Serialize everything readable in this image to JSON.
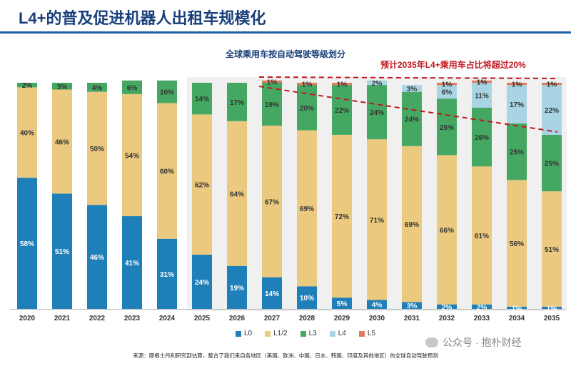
{
  "title": "L4+的普及促进机器人出租车规模化",
  "chart_data": {
    "type": "bar",
    "stacked": true,
    "title": "全球乘用车按自动驾驶等级划分",
    "categories": [
      "2020",
      "2021",
      "2022",
      "2023",
      "2024",
      "2025",
      "2026",
      "2027",
      "2028",
      "2029",
      "2030",
      "2031",
      "2032",
      "2033",
      "2034",
      "2035"
    ],
    "series": [
      {
        "name": "L0",
        "color": "#1f7fb8",
        "values": [
          58,
          51,
          46,
          41,
          31,
          24,
          19,
          14,
          10,
          5,
          4,
          3,
          2,
          2,
          1,
          1
        ],
        "labels": [
          "58%",
          "51%",
          "46%",
          "41%",
          "31%",
          "24%",
          "19%",
          "14%",
          "10%",
          "5%",
          "4%",
          "3%",
          "2%",
          "2%",
          "1%",
          "1%"
        ]
      },
      {
        "name": "L1/2",
        "color": "#ebc97f",
        "values": [
          40,
          46,
          50,
          54,
          60,
          62,
          64,
          67,
          69,
          72,
          71,
          69,
          66,
          61,
          56,
          51
        ],
        "labels": [
          "40%",
          "46%",
          "50%",
          "54%",
          "60%",
          "62%",
          "64%",
          "67%",
          "69%",
          "72%",
          "71%",
          "69%",
          "66%",
          "61%",
          "56%",
          "51%"
        ]
      },
      {
        "name": "L3",
        "color": "#45a862",
        "values": [
          2,
          3,
          4,
          6,
          10,
          14,
          17,
          19,
          20,
          22,
          24,
          24,
          25,
          26,
          25,
          25
        ],
        "labels": [
          "2%",
          "3%",
          "4%",
          "6%",
          "10%",
          "14%",
          "17%",
          "19%",
          "20%",
          "22%",
          "24%",
          "24%",
          "25%",
          "26%",
          "25%",
          "25%"
        ]
      },
      {
        "name": "L4",
        "color": "#a8d4e3",
        "values": [
          0,
          0,
          0,
          0,
          0,
          0,
          0,
          0,
          0,
          0,
          2,
          3,
          6,
          11,
          17,
          22
        ],
        "labels": [
          "",
          "",
          "",
          "",
          "",
          "",
          "",
          "",
          "",
          "",
          "2%",
          "3%",
          "6%",
          "11%",
          "17%",
          "22%"
        ]
      },
      {
        "name": "L5",
        "color": "#e07c5a",
        "values": [
          0,
          0,
          0,
          0,
          0,
          0,
          0,
          1,
          1,
          1,
          0,
          0,
          1,
          1,
          1,
          1
        ],
        "labels": [
          "",
          "",
          "",
          "",
          "",
          "",
          "",
          "1%",
          "1%",
          "1%",
          "",
          "",
          "1%",
          "1%",
          "1%",
          "1%"
        ]
      }
    ],
    "ylim": [
      0,
      100
    ],
    "annotation": "预计2035年L4+乘用车占比将超过20%",
    "annotation_color": "#c0181f"
  },
  "source": "来源：摩根士丹利研究部估算，整合了我们来自各地区（美国、欧洲、中国、日本、韩国、印度及其他地区）的全球自动驾驶预测",
  "watermark": "公众号 · 抱朴财经"
}
